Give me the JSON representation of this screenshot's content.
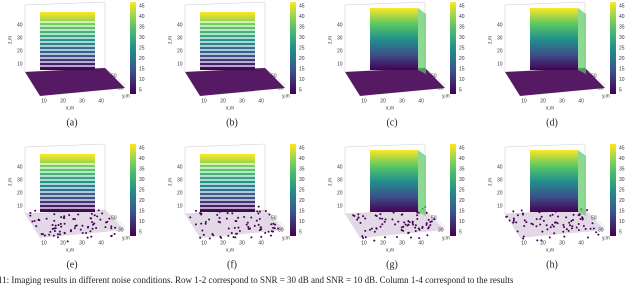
{
  "panels": [
    {
      "label": "(a)",
      "x_label": "x,m",
      "y_label": "y,m",
      "z_label": "z,m",
      "x_ticks": [
        "10",
        "20",
        "30",
        "40"
      ],
      "y_ticks": [
        "30",
        "50"
      ],
      "z_ticks": [
        "10",
        "20",
        "30",
        "40"
      ],
      "colorbar_ticks": [
        "5",
        "10",
        "15",
        "20",
        "25",
        "30",
        "35",
        "40",
        "45"
      ]
    },
    {
      "label": "(b)",
      "x_label": "x,m",
      "y_label": "y,m",
      "z_label": "z,m",
      "x_ticks": [
        "10",
        "20",
        "30",
        "40"
      ],
      "y_ticks": [
        "30",
        "50"
      ],
      "z_ticks": [
        "10",
        "20",
        "30",
        "40"
      ],
      "colorbar_ticks": [
        "5",
        "10",
        "15",
        "20",
        "25",
        "30",
        "35",
        "40",
        "45"
      ]
    },
    {
      "label": "(c)",
      "x_label": "x,m",
      "y_label": "y,m",
      "z_label": "z,m",
      "x_ticks": [
        "10",
        "20",
        "30",
        "40"
      ],
      "y_ticks": [
        "30",
        "50"
      ],
      "z_ticks": [
        "10",
        "20",
        "30",
        "40"
      ],
      "colorbar_ticks": [
        "5",
        "10",
        "15",
        "20",
        "25",
        "30",
        "35",
        "40",
        "45"
      ]
    },
    {
      "label": "(d)",
      "x_label": "x,m",
      "y_label": "y,m",
      "z_label": "z,m",
      "x_ticks": [
        "10",
        "20",
        "30",
        "40"
      ],
      "y_ticks": [
        "30",
        "50"
      ],
      "z_ticks": [
        "10",
        "20",
        "30",
        "40"
      ],
      "colorbar_ticks": [
        "5",
        "10",
        "15",
        "20",
        "25",
        "30",
        "35",
        "40",
        "45"
      ]
    },
    {
      "label": "(e)",
      "x_label": "x,m",
      "y_label": "y,m",
      "z_label": "z,m",
      "x_ticks": [
        "10",
        "20",
        "30",
        "40"
      ],
      "y_ticks": [
        "30",
        "50"
      ],
      "z_ticks": [
        "10",
        "20",
        "30",
        "40"
      ],
      "colorbar_ticks": [
        "5",
        "10",
        "15",
        "20",
        "25",
        "30",
        "35",
        "40",
        "45"
      ]
    },
    {
      "label": "(f)",
      "x_label": "x,m",
      "y_label": "y,m",
      "z_label": "z,m",
      "x_ticks": [
        "10",
        "20",
        "30",
        "40"
      ],
      "y_ticks": [
        "30",
        "50"
      ],
      "z_ticks": [
        "10",
        "20",
        "30",
        "40"
      ],
      "colorbar_ticks": [
        "5",
        "10",
        "15",
        "20",
        "25",
        "30",
        "35",
        "40",
        "45"
      ]
    },
    {
      "label": "(g)",
      "x_label": "x,m",
      "y_label": "y,m",
      "z_label": "z,m",
      "x_ticks": [
        "10",
        "20",
        "30",
        "40"
      ],
      "y_ticks": [
        "30",
        "50"
      ],
      "z_ticks": [
        "10",
        "20",
        "30",
        "40"
      ],
      "colorbar_ticks": [
        "5",
        "10",
        "15",
        "20",
        "25",
        "30",
        "35",
        "40",
        "45"
      ]
    },
    {
      "label": "(h)",
      "x_label": "x,m",
      "y_label": "y,m",
      "z_label": "z,m",
      "x_ticks": [
        "10",
        "20",
        "30",
        "40"
      ],
      "y_ticks": [
        "30",
        "50"
      ],
      "z_ticks": [
        "10",
        "20",
        "30",
        "40"
      ],
      "colorbar_ticks": [
        "5",
        "10",
        "15",
        "20",
        "25",
        "30",
        "35",
        "40",
        "45"
      ]
    }
  ],
  "caption": "11: Imaging results in different noise conditions. Row 1-2 correspond to SNR = 30 dB and SNR = 10 dB. Column 1-4 correspond to the results"
}
